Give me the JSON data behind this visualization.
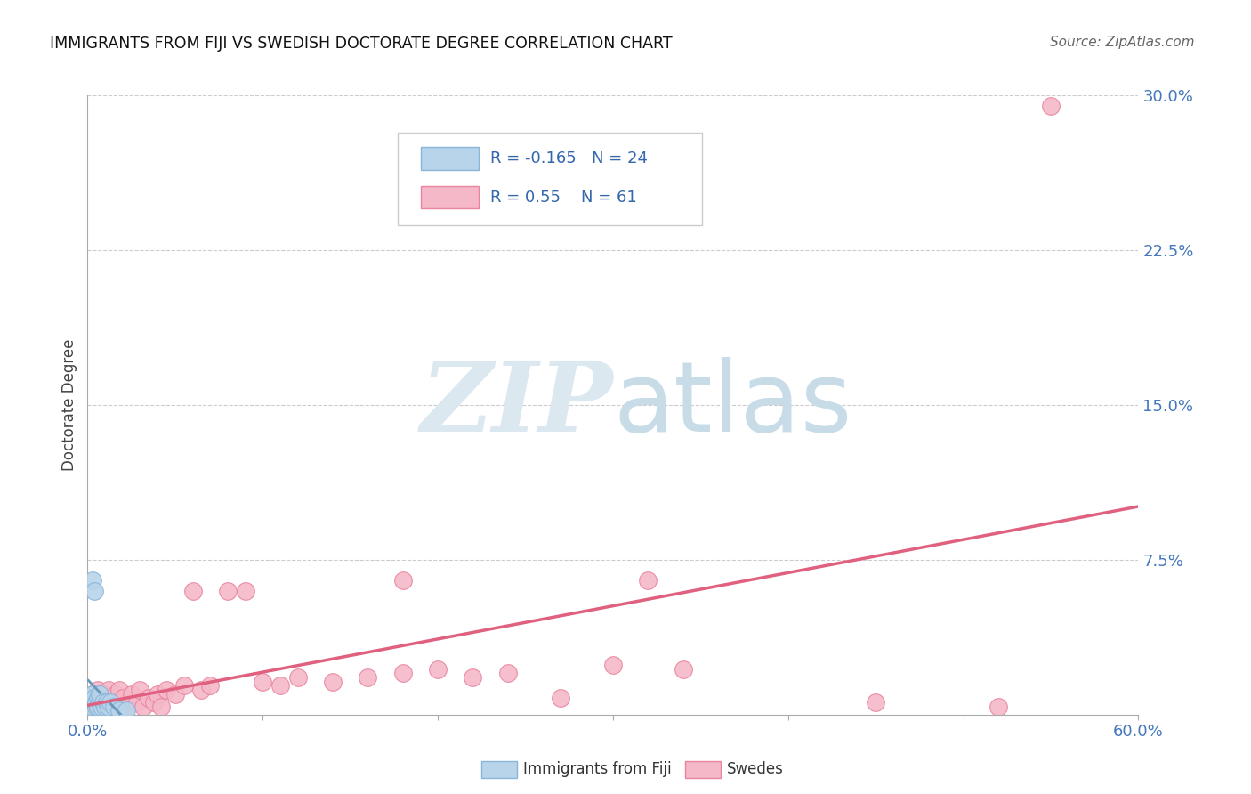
{
  "title": "IMMIGRANTS FROM FIJI VS SWEDISH DOCTORATE DEGREE CORRELATION CHART",
  "source": "Source: ZipAtlas.com",
  "ylabel": "Doctorate Degree",
  "xlim": [
    0.0,
    0.6
  ],
  "ylim": [
    0.0,
    0.3
  ],
  "xticks": [
    0.0,
    0.1,
    0.2,
    0.3,
    0.4,
    0.5,
    0.6
  ],
  "xticklabels": [
    "0.0%",
    "",
    "",
    "",
    "",
    "",
    "60.0%"
  ],
  "ytick_labels_right": [
    "7.5%",
    "15.0%",
    "22.5%",
    "30.0%"
  ],
  "ytick_values_right": [
    0.075,
    0.15,
    0.225,
    0.3
  ],
  "grid_color": "#cccccc",
  "background_color": "#ffffff",
  "fiji_color": "#b8d4ea",
  "fiji_edge_color": "#8ab4d8",
  "swede_color": "#f5b8c8",
  "swede_edge_color": "#e8849e",
  "fiji_R": -0.165,
  "fiji_N": 24,
  "swede_R": 0.55,
  "swede_N": 61,
  "fiji_line_color": "#6699bb",
  "swede_line_color": "#e06080",
  "legend_fiji_label": "Immigrants from Fiji",
  "legend_swede_label": "Swedes",
  "fiji_x": [
    0.001,
    0.002,
    0.002,
    0.003,
    0.003,
    0.004,
    0.004,
    0.005,
    0.005,
    0.006,
    0.006,
    0.007,
    0.007,
    0.008,
    0.009,
    0.01,
    0.011,
    0.012,
    0.013,
    0.015,
    0.018,
    0.022,
    0.003,
    0.004
  ],
  "fiji_y": [
    0.004,
    0.006,
    0.008,
    0.004,
    0.01,
    0.006,
    0.008,
    0.004,
    0.006,
    0.004,
    0.008,
    0.006,
    0.01,
    0.004,
    0.006,
    0.004,
    0.006,
    0.004,
    0.006,
    0.004,
    0.002,
    0.002,
    0.065,
    0.06
  ],
  "swede_x": [
    0.001,
    0.002,
    0.002,
    0.003,
    0.003,
    0.004,
    0.004,
    0.005,
    0.005,
    0.006,
    0.006,
    0.007,
    0.007,
    0.008,
    0.009,
    0.01,
    0.01,
    0.011,
    0.012,
    0.013,
    0.014,
    0.015,
    0.016,
    0.017,
    0.018,
    0.019,
    0.02,
    0.022,
    0.025,
    0.028,
    0.03,
    0.032,
    0.035,
    0.038,
    0.04,
    0.042,
    0.045,
    0.05,
    0.055,
    0.06,
    0.065,
    0.07,
    0.08,
    0.09,
    0.1,
    0.11,
    0.12,
    0.14,
    0.16,
    0.18,
    0.2,
    0.22,
    0.24,
    0.27,
    0.3,
    0.34,
    0.18,
    0.32,
    0.45,
    0.52,
    0.55
  ],
  "swede_y": [
    0.004,
    0.006,
    0.008,
    0.004,
    0.01,
    0.006,
    0.008,
    0.004,
    0.008,
    0.006,
    0.012,
    0.006,
    0.01,
    0.004,
    0.008,
    0.004,
    0.01,
    0.006,
    0.012,
    0.004,
    0.008,
    0.006,
    0.01,
    0.004,
    0.012,
    0.006,
    0.008,
    0.004,
    0.01,
    0.006,
    0.012,
    0.004,
    0.008,
    0.006,
    0.01,
    0.004,
    0.012,
    0.01,
    0.014,
    0.06,
    0.012,
    0.014,
    0.06,
    0.06,
    0.016,
    0.014,
    0.018,
    0.016,
    0.018,
    0.02,
    0.022,
    0.018,
    0.02,
    0.008,
    0.024,
    0.022,
    0.065,
    0.065,
    0.006,
    0.004,
    0.295
  ]
}
